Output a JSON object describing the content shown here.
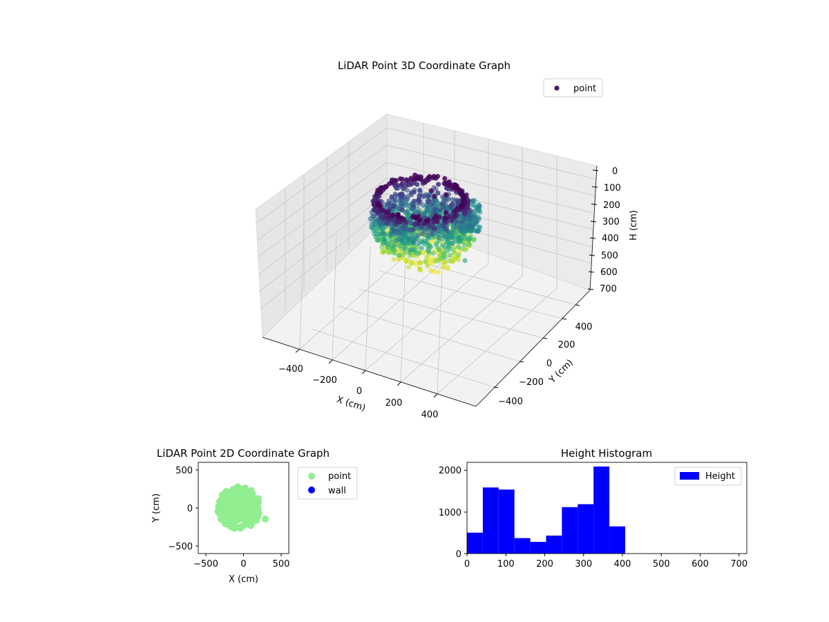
{
  "figure": {
    "plot3d": {
      "title": "LiDAR Point 3D Coordinate Graph",
      "legend_label": "point",
      "xlabel": "X (cm)",
      "ylabel": "Y (cm)",
      "zlabel": "H (cm)"
    },
    "plot2d": {
      "title": "LiDAR Point 2D Coordinate Graph",
      "xlabel": "X (cm)",
      "ylabel": "Y (cm)",
      "legend_point": "point",
      "legend_wall": "wall"
    },
    "hist": {
      "title": "Height Histogram",
      "legend_label": "Height"
    }
  },
  "colors": {
    "point2d": "#90ee90",
    "wall": "#0000ff",
    "hist_bar": "#0000ff",
    "legend3d_marker": "#481a6c"
  },
  "chart_data": [
    {
      "type": "scatter",
      "name": "3d",
      "title": "LiDAR Point 3D Coordinate Graph",
      "xlabel": "X (cm)",
      "ylabel": "Y (cm)",
      "zlabel": "H (cm)",
      "xlim": [
        -550,
        550
      ],
      "ylim": [
        -550,
        550
      ],
      "zlim": [
        0,
        700
      ],
      "z_inverted": true,
      "x_ticks": [
        "−400",
        "−200",
        "0",
        "200",
        "400"
      ],
      "y_ticks": [
        "−400",
        "−200",
        "0",
        "200",
        "400"
      ],
      "z_ticks": [
        "0",
        "100",
        "200",
        "300",
        "400",
        "500",
        "600",
        "700"
      ],
      "series": [
        {
          "name": "point",
          "colormap": "viridis"
        }
      ],
      "legend": "top-right"
    },
    {
      "type": "scatter",
      "name": "2d",
      "title": "LiDAR Point 2D Coordinate Graph",
      "xlabel": "X (cm)",
      "ylabel": "Y (cm)",
      "xlim": [
        -600,
        600
      ],
      "ylim": [
        -600,
        600
      ],
      "x_ticks": [
        "−500",
        "0",
        "500"
      ],
      "y_ticks": [
        "500",
        "0",
        "−500"
      ],
      "series": [
        {
          "name": "point"
        },
        {
          "name": "wall"
        }
      ],
      "legend": "outside-right"
    },
    {
      "type": "bar",
      "name": "hist",
      "title": "Height Histogram",
      "x_ticks": [
        "0",
        "100",
        "200",
        "300",
        "400",
        "500",
        "600",
        "700"
      ],
      "y_ticks": [
        "0",
        "1000",
        "2000"
      ],
      "xlim": [
        0,
        720
      ],
      "ylim": [
        0,
        2180
      ],
      "bin_edges": [
        0,
        40.7,
        81.4,
        122.1,
        162.8,
        203.5,
        244.2,
        284.9,
        325.6,
        366.3,
        407
      ],
      "values": [
        500,
        1580,
        1530,
        370,
        280,
        430,
        1110,
        1180,
        2080,
        650
      ],
      "series": [
        {
          "name": "Height"
        }
      ],
      "legend": "top-right"
    }
  ]
}
